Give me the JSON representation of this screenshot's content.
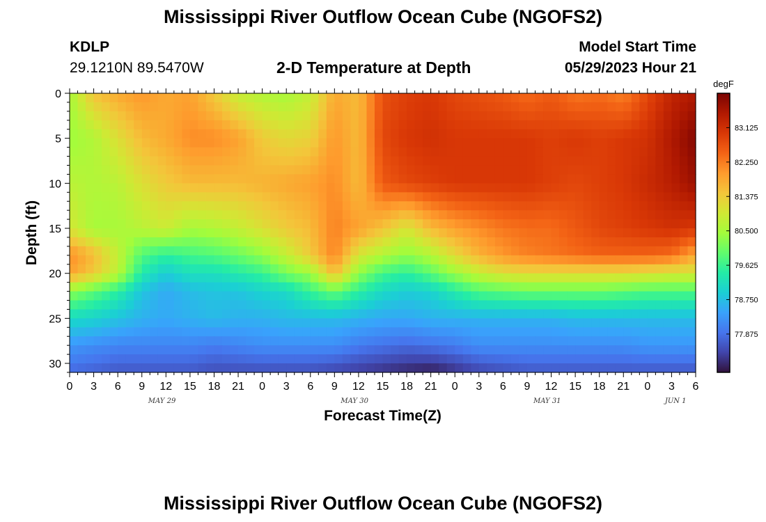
{
  "page": {
    "title": "Mississippi River Outflow Ocean Cube (NGOFS2)",
    "second_title": "Mississippi River Outflow Ocean Cube (NGOFS2)",
    "station": "KDLP",
    "location": "29.1210N  89.5470W",
    "subtitle": "2-D Temperature at Depth",
    "model_start_label": "Model Start Time",
    "model_start_value": "05/29/2023 Hour 21"
  },
  "chart_data": {
    "type": "heatmap",
    "title": "2-D Temperature at Depth",
    "xlabel": "Forecast Time(Z)",
    "ylabel": "Depth (ft)",
    "x_unit": "forecast hour",
    "xlim": [
      0,
      78
    ],
    "ylim": [
      0,
      31
    ],
    "y_inverted": true,
    "x_tick_values": [
      0,
      3,
      6,
      9,
      12,
      15,
      18,
      21,
      24,
      27,
      30,
      33,
      36,
      39,
      42,
      45,
      48,
      51,
      54,
      57,
      60,
      63,
      66,
      69,
      72,
      75,
      78
    ],
    "x_tick_labels": [
      "0",
      "3",
      "6",
      "9",
      "12",
      "15",
      "18",
      "21",
      "0",
      "3",
      "6",
      "9",
      "12",
      "15",
      "18",
      "21",
      "0",
      "3",
      "6",
      "9",
      "12",
      "15",
      "18",
      "21",
      "0",
      "3",
      "6"
    ],
    "y_ticks": [
      0,
      5,
      10,
      15,
      20,
      25,
      30
    ],
    "date_labels": [
      {
        "at": 11.5,
        "label": "MAY 29"
      },
      {
        "at": 35.5,
        "label": "MAY 30"
      },
      {
        "at": 59.5,
        "label": "MAY 31"
      },
      {
        "at": 75.5,
        "label": "JUN 1"
      }
    ],
    "colorbar": {
      "unit": "degF",
      "min": 76.9,
      "max": 84.0,
      "ticks": [
        77.875,
        78.75,
        79.625,
        80.5,
        81.375,
        82.25,
        83.125
      ],
      "tick_labels": [
        "77.875",
        "78.750",
        "79.625",
        "80.500",
        "81.375",
        "82.250",
        "83.125"
      ],
      "colors": [
        "#30123b",
        "#4145ab",
        "#4675ed",
        "#39a2fc",
        "#1bcfd4",
        "#24eca6",
        "#61fc6c",
        "#a4fc3b",
        "#d1e834",
        "#f3c63a",
        "#fe9b2d",
        "#f36315",
        "#d93806",
        "#b11901",
        "#7a0402"
      ]
    },
    "depth_levels_ft": [
      0,
      5,
      10,
      15,
      18,
      20,
      22,
      25,
      28,
      31
    ],
    "time_points_hr": [
      0,
      3,
      6,
      9,
      12,
      15,
      18,
      21,
      24,
      27,
      30,
      33,
      36,
      39,
      42,
      45,
      48,
      51,
      54,
      57,
      60,
      63,
      66,
      69,
      72,
      75,
      78
    ],
    "temperature_degF": [
      [
        80.5,
        81.5,
        81.8,
        82.0,
        81.8,
        81.9,
        81.4,
        80.8,
        80.6,
        80.5,
        80.8,
        81.8,
        81.6,
        82.7,
        82.9,
        83.0,
        82.8,
        82.7,
        82.6,
        82.4,
        82.6,
        82.3,
        82.4,
        82.2,
        82.8,
        83.3,
        83.5
      ],
      [
        80.4,
        80.6,
        81.1,
        81.6,
        81.8,
        82.1,
        82.1,
        81.9,
        81.4,
        81.2,
        81.3,
        82.0,
        81.6,
        82.8,
        83.0,
        83.1,
        83.0,
        83.0,
        83.0,
        83.0,
        82.9,
        83.0,
        82.9,
        83.0,
        83.1,
        83.5,
        83.9
      ],
      [
        80.7,
        80.6,
        80.7,
        81.1,
        81.4,
        81.6,
        81.6,
        81.6,
        81.7,
        81.8,
        81.9,
        82.1,
        81.6,
        82.6,
        82.8,
        82.9,
        83.0,
        83.0,
        83.0,
        83.0,
        82.9,
        82.8,
        82.9,
        83.0,
        83.2,
        83.4,
        83.7
      ],
      [
        81.0,
        80.5,
        80.5,
        80.7,
        80.9,
        80.5,
        80.6,
        80.8,
        81.1,
        81.4,
        81.6,
        82.2,
        81.9,
        81.5,
        81.0,
        81.6,
        81.9,
        82.1,
        82.3,
        82.4,
        82.4,
        82.6,
        82.8,
        82.9,
        83.0,
        83.1,
        83.0
      ],
      [
        82.1,
        81.6,
        80.8,
        79.8,
        79.5,
        79.7,
        79.8,
        80.0,
        80.3,
        80.8,
        81.4,
        82.2,
        81.0,
        80.6,
        80.3,
        80.6,
        81.2,
        81.7,
        82.0,
        82.2,
        82.3,
        82.4,
        82.5,
        82.5,
        82.5,
        82.4,
        81.8
      ],
      [
        81.9,
        81.4,
        80.7,
        79.4,
        78.9,
        79.2,
        79.2,
        79.4,
        79.6,
        80.1,
        80.4,
        81.6,
        80.3,
        79.7,
        79.5,
        79.9,
        80.4,
        80.8,
        81.1,
        81.2,
        81.2,
        81.2,
        81.2,
        81.2,
        81.1,
        81.0,
        81.0
      ],
      [
        80.3,
        79.9,
        79.5,
        78.8,
        78.5,
        78.7,
        78.8,
        78.8,
        79.0,
        79.1,
        79.6,
        80.0,
        79.5,
        79.1,
        78.9,
        79.0,
        79.4,
        79.8,
        79.9,
        80.0,
        80.0,
        80.0,
        80.0,
        79.9,
        79.8,
        79.8,
        79.8
      ],
      [
        79.1,
        79.0,
        78.8,
        78.6,
        78.5,
        78.6,
        78.7,
        78.6,
        78.6,
        78.7,
        78.7,
        78.7,
        78.6,
        78.5,
        78.5,
        78.6,
        78.6,
        78.6,
        78.6,
        78.6,
        78.6,
        78.7,
        78.7,
        78.7,
        78.7,
        78.7,
        78.7
      ],
      [
        78.3,
        78.2,
        78.1,
        78.1,
        78.1,
        78.1,
        78.0,
        78.1,
        78.2,
        78.2,
        78.2,
        78.2,
        78.0,
        77.9,
        77.8,
        77.9,
        78.0,
        78.2,
        78.2,
        78.2,
        78.2,
        78.2,
        78.2,
        78.2,
        78.3,
        78.3,
        78.3
      ],
      [
        77.8,
        77.7,
        77.6,
        77.6,
        77.6,
        77.6,
        77.5,
        77.5,
        77.5,
        77.5,
        77.5,
        77.4,
        77.3,
        77.2,
        77.1,
        77.0,
        77.2,
        77.4,
        77.5,
        77.6,
        77.6,
        77.6,
        77.6,
        77.6,
        77.6,
        77.6,
        77.6
      ]
    ]
  }
}
